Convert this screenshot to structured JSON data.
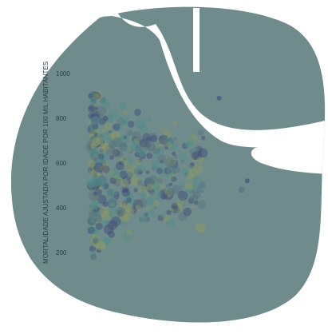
{
  "colors": {
    "blob": "#6f8b8b",
    "cutout": "#ffffff",
    "point_navy": "#3e4a78",
    "point_slate": "#57707f",
    "point_teal": "#4f8f8a",
    "point_olive": "#8c9a63"
  },
  "chart_data": {
    "type": "scatter",
    "ylabel": "MORTALIDADE AJUSTADA POR IDADE POR 100 MIL HABITANTES",
    "ylim": [
      100,
      1050
    ],
    "yticks": [
      "1000",
      "800",
      "600",
      "400",
      "200"
    ],
    "ytick_values": [
      1000,
      800,
      600,
      400,
      200
    ],
    "xlim": [
      0,
      100
    ],
    "grid": false,
    "legend": "none",
    "series": [
      {
        "points": [
          {
            "x": 4,
            "y": 540
          },
          {
            "x": 6,
            "y": 520
          },
          {
            "x": 7,
            "y": 610
          },
          {
            "x": 9,
            "y": 575
          },
          {
            "x": 10,
            "y": 500
          },
          {
            "x": 12,
            "y": 470
          },
          {
            "x": 14,
            "y": 555
          },
          {
            "x": 16,
            "y": 530
          },
          {
            "x": 18,
            "y": 600
          },
          {
            "x": 20,
            "y": 480
          },
          {
            "x": 22,
            "y": 450
          },
          {
            "x": 25,
            "y": 520
          },
          {
            "x": 28,
            "y": 560
          },
          {
            "x": 30,
            "y": 490
          },
          {
            "x": 33,
            "y": 430
          },
          {
            "x": 36,
            "y": 510
          },
          {
            "x": 40,
            "y": 470
          },
          {
            "x": 45,
            "y": 560
          },
          {
            "x": 50,
            "y": 420
          },
          {
            "x": 60,
            "y": 310
          },
          {
            "x": 70,
            "y": 890
          },
          {
            "x": 8,
            "y": 880
          },
          {
            "x": 12,
            "y": 800
          },
          {
            "x": 15,
            "y": 720
          },
          {
            "x": 5,
            "y": 680
          },
          {
            "x": 3,
            "y": 650
          },
          {
            "x": 2,
            "y": 300
          },
          {
            "x": 4,
            "y": 260
          },
          {
            "x": 6,
            "y": 210
          },
          {
            "x": 3,
            "y": 180
          },
          {
            "x": 10,
            "y": 250
          },
          {
            "x": 7,
            "y": 230
          },
          {
            "x": 85,
            "y": 520
          },
          {
            "x": 82,
            "y": 480
          },
          {
            "x": 55,
            "y": 480
          },
          {
            "x": 48,
            "y": 400
          }
        ]
      }
    ]
  }
}
